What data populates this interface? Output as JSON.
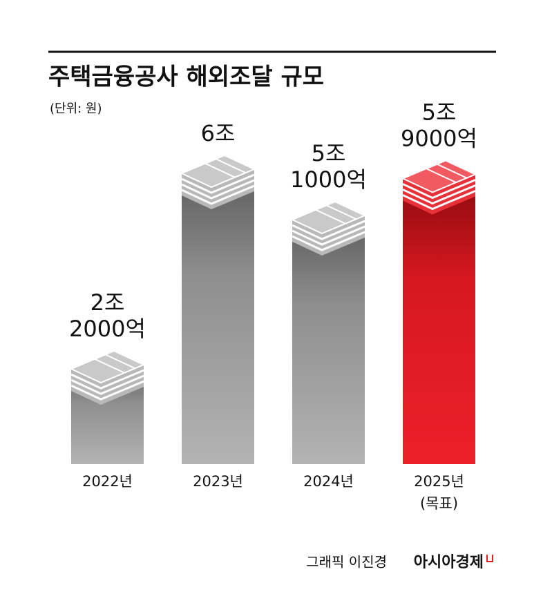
{
  "chart_data": {
    "type": "bar",
    "title": "주택금융공사 해외조달 규모",
    "subtitle": "(단위: 원)",
    "categories": [
      "2022년",
      "2023년",
      "2024년",
      "2025년"
    ],
    "category_note": "(목표)",
    "values": [
      22000,
      60000,
      51000,
      59000
    ],
    "value_labels": [
      [
        "2조",
        "2000억"
      ],
      [
        "6조"
      ],
      [
        "5조",
        "1000억"
      ],
      [
        "5조",
        "9000억"
      ]
    ],
    "colors": [
      "#9a9a9a",
      "#9a9a9a",
      "#9a9a9a",
      "#e31e24"
    ],
    "ylim": [
      0,
      80000
    ],
    "credit": "그래픽 이진경",
    "publisher": "아시아경제"
  }
}
